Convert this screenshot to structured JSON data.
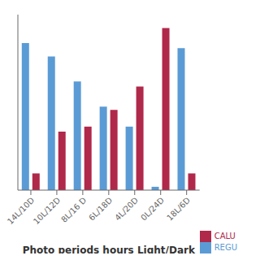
{
  "chart_data": {
    "type": "bar",
    "categories": [
      "14L/10D",
      "10L/12D",
      "8L/16 D",
      "6L/18D",
      "4L/20D",
      "0L/24D",
      "18L/6D"
    ],
    "series": [
      {
        "name": "REGU",
        "color": "#5B9BD5",
        "values": [
          88,
          80,
          65,
          50,
          38,
          2,
          85
        ]
      },
      {
        "name": "CALU",
        "color": "#B0284A",
        "values": [
          10,
          35,
          38,
          48,
          62,
          97,
          10
        ]
      }
    ],
    "xlabel": "Photo periods hours Light/Dark",
    "ylim": [
      0,
      105
    ],
    "grid": false,
    "legend": "lower right",
    "tick_labels": "x"
  }
}
